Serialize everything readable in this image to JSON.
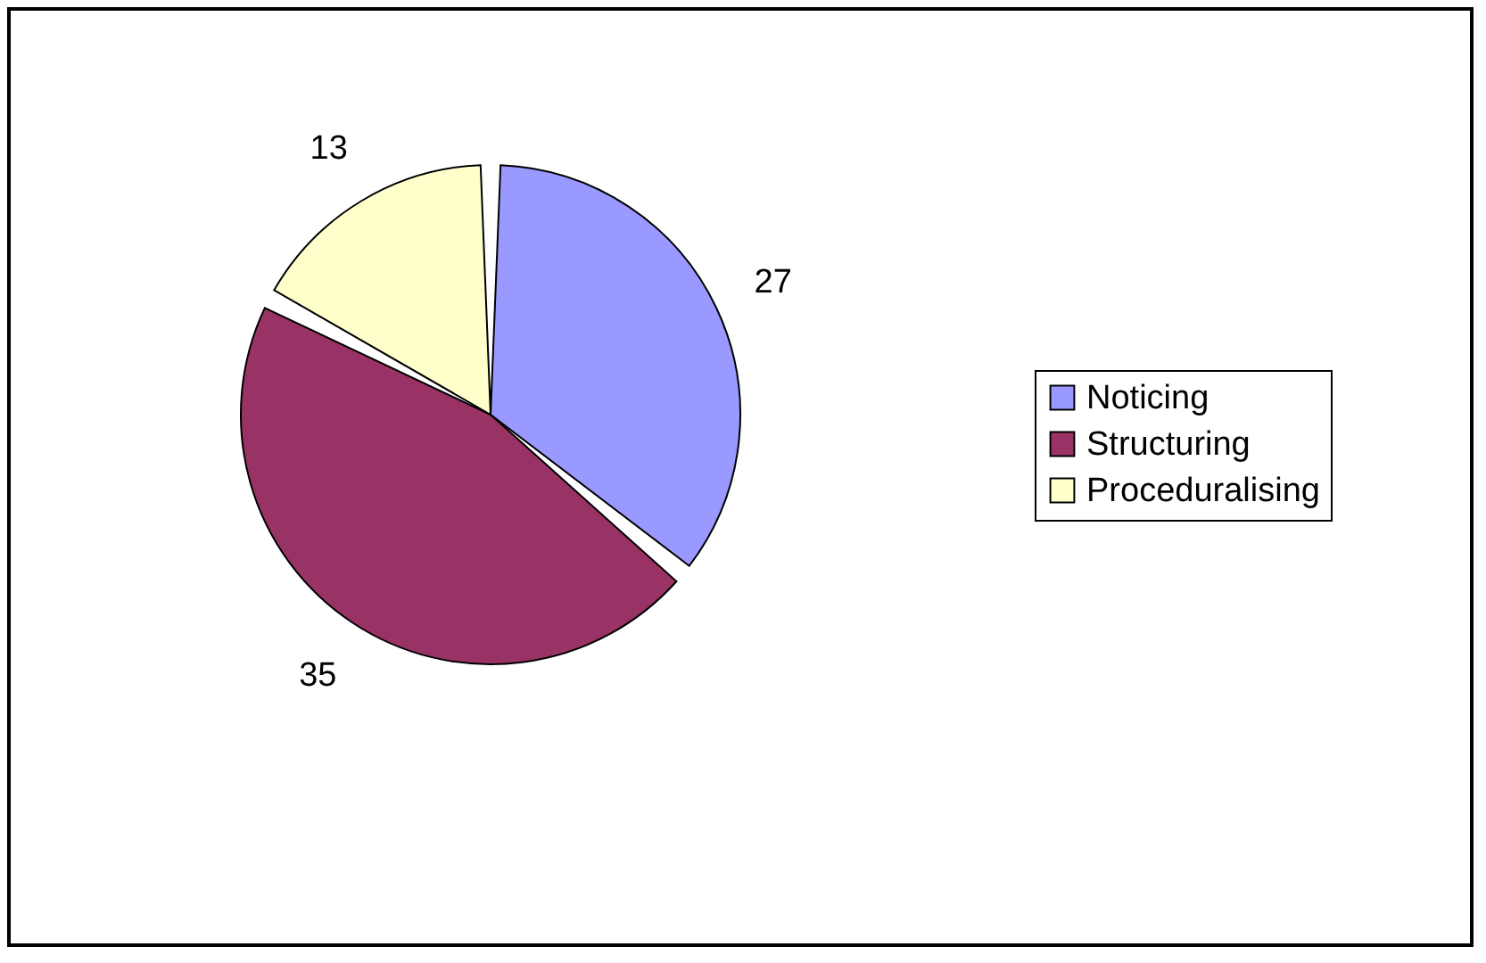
{
  "chart_data": {
    "type": "pie",
    "categories": [
      "Noticing",
      "Structuring",
      "Proceduralising"
    ],
    "values": [
      27,
      35,
      13
    ],
    "colors": [
      "#9999ff",
      "#993366",
      "#ffffcc"
    ],
    "data_labels": true,
    "legend": "right"
  }
}
